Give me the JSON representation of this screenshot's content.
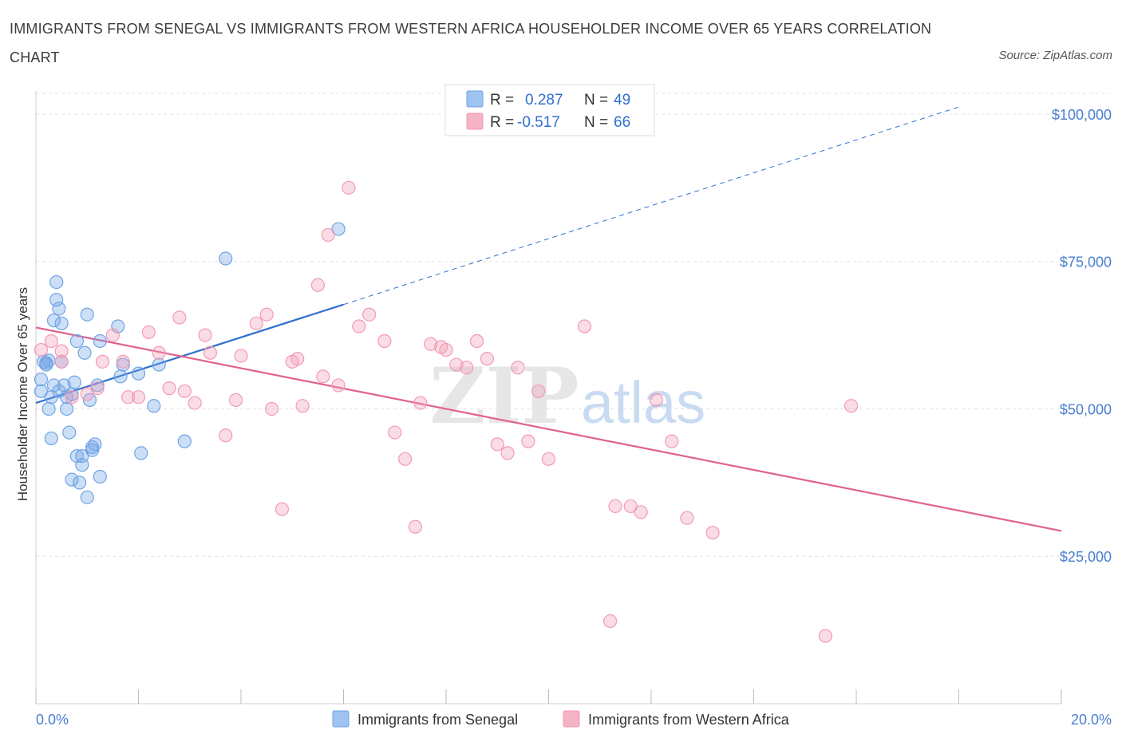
{
  "title": "IMMIGRANTS FROM SENEGAL VS IMMIGRANTS FROM WESTERN AFRICA HOUSEHOLDER INCOME OVER 65 YEARS CORRELATION CHART",
  "source": "Source: ZipAtlas.com",
  "watermark": {
    "zip": "ZIP",
    "atlas": "atlas"
  },
  "legend_top": [
    {
      "r_label": "R =",
      "r_value": "0.287",
      "n_label": "N =",
      "n_value": "49",
      "color": "#9ec3f0"
    },
    {
      "r_label": "R =",
      "r_value": "-0.517",
      "n_label": "N =",
      "n_value": "66",
      "color": "#f5b3c6"
    }
  ],
  "chart_data": {
    "type": "scatter",
    "title": "IMMIGRANTS FROM SENEGAL VS IMMIGRANTS FROM WESTERN AFRICA HOUSEHOLDER INCOME OVER 65 YEARS CORRELATION CHART",
    "xlabel": "",
    "ylabel": "Householder Income Over 65 years",
    "xlim": [
      0,
      20
    ],
    "ylim": [
      0,
      105000
    ],
    "x_tick_labels": [
      "0.0%",
      "20.0%"
    ],
    "y_ticks": [
      25000,
      50000,
      75000,
      100000
    ],
    "y_tick_labels": [
      "$25,000",
      "$50,000",
      "$75,000",
      "$100,000"
    ],
    "grid": true,
    "legend_position": "bottom",
    "series": [
      {
        "name": "Immigrants from Senegal",
        "color": "#6fa3e6",
        "line_color": "#2f6fd0",
        "trend": {
          "x": [
            0,
            6
          ],
          "y": [
            51000,
            67700
          ],
          "dashed_to": [
            18,
            101200
          ]
        },
        "points": [
          [
            0.1,
            53000
          ],
          [
            0.1,
            55000
          ],
          [
            0.15,
            58000
          ],
          [
            0.2,
            57500
          ],
          [
            0.25,
            50000
          ],
          [
            0.3,
            52000
          ],
          [
            0.3,
            45000
          ],
          [
            0.35,
            54000
          ],
          [
            0.35,
            65000
          ],
          [
            0.4,
            68500
          ],
          [
            0.4,
            71500
          ],
          [
            0.45,
            67000
          ],
          [
            0.5,
            64500
          ],
          [
            0.5,
            58000
          ],
          [
            0.55,
            54000
          ],
          [
            0.6,
            52000
          ],
          [
            0.6,
            50000
          ],
          [
            0.65,
            46000
          ],
          [
            0.7,
            38000
          ],
          [
            0.75,
            54500
          ],
          [
            0.8,
            42000
          ],
          [
            0.85,
            37500
          ],
          [
            0.8,
            61500
          ],
          [
            0.9,
            42000
          ],
          [
            0.9,
            40500
          ],
          [
            0.95,
            59500
          ],
          [
            1.0,
            35000
          ],
          [
            1.0,
            66000
          ],
          [
            1.05,
            51500
          ],
          [
            1.1,
            43000
          ],
          [
            1.1,
            43500
          ],
          [
            1.15,
            44000
          ],
          [
            1.2,
            54000
          ],
          [
            1.25,
            38500
          ],
          [
            1.25,
            61500
          ],
          [
            1.6,
            64000
          ],
          [
            1.7,
            57500
          ],
          [
            2.0,
            56000
          ],
          [
            2.05,
            42500
          ],
          [
            2.3,
            50500
          ],
          [
            2.4,
            57500
          ],
          [
            2.9,
            44500
          ],
          [
            3.7,
            75500
          ],
          [
            5.9,
            80500
          ],
          [
            0.2,
            57800
          ],
          [
            0.45,
            53000
          ],
          [
            0.7,
            52500
          ],
          [
            1.65,
            55500
          ],
          [
            0.25,
            58200
          ]
        ]
      },
      {
        "name": "Immigrants from Western Africa",
        "color": "#f29ab4",
        "line_color": "#e0628e",
        "trend": {
          "x": [
            0,
            20
          ],
          "y": [
            63800,
            29300
          ]
        },
        "points": [
          [
            0.1,
            60000
          ],
          [
            0.3,
            61500
          ],
          [
            0.5,
            58000
          ],
          [
            0.7,
            52000
          ],
          [
            1.0,
            52500
          ],
          [
            1.2,
            53500
          ],
          [
            1.3,
            58000
          ],
          [
            1.5,
            62500
          ],
          [
            1.7,
            58000
          ],
          [
            1.8,
            52000
          ],
          [
            2.0,
            52000
          ],
          [
            2.2,
            63000
          ],
          [
            2.4,
            59500
          ],
          [
            2.6,
            53500
          ],
          [
            2.8,
            65500
          ],
          [
            2.9,
            53000
          ],
          [
            3.1,
            51000
          ],
          [
            3.3,
            62500
          ],
          [
            3.4,
            59500
          ],
          [
            3.7,
            45500
          ],
          [
            3.9,
            51500
          ],
          [
            4.0,
            59000
          ],
          [
            4.3,
            64500
          ],
          [
            4.5,
            66000
          ],
          [
            4.6,
            50000
          ],
          [
            4.8,
            33000
          ],
          [
            5.0,
            58000
          ],
          [
            5.1,
            58500
          ],
          [
            5.2,
            50500
          ],
          [
            5.5,
            71000
          ],
          [
            5.6,
            55500
          ],
          [
            5.7,
            79500
          ],
          [
            5.9,
            54000
          ],
          [
            6.1,
            87500
          ],
          [
            6.3,
            64000
          ],
          [
            6.5,
            66000
          ],
          [
            6.8,
            61500
          ],
          [
            7.0,
            46000
          ],
          [
            7.2,
            41500
          ],
          [
            7.4,
            30000
          ],
          [
            7.5,
            51000
          ],
          [
            7.7,
            61000
          ],
          [
            7.9,
            60500
          ],
          [
            8.0,
            60000
          ],
          [
            8.2,
            57500
          ],
          [
            8.4,
            57000
          ],
          [
            8.6,
            61500
          ],
          [
            8.8,
            58500
          ],
          [
            9.0,
            44000
          ],
          [
            9.2,
            42500
          ],
          [
            9.4,
            57000
          ],
          [
            9.6,
            44500
          ],
          [
            9.8,
            53000
          ],
          [
            10.0,
            41500
          ],
          [
            10.7,
            64000
          ],
          [
            11.2,
            14000
          ],
          [
            11.3,
            33500
          ],
          [
            11.6,
            33500
          ],
          [
            11.8,
            32500
          ],
          [
            12.1,
            51500
          ],
          [
            12.4,
            44500
          ],
          [
            12.7,
            31500
          ],
          [
            13.2,
            29000
          ],
          [
            15.4,
            11500
          ],
          [
            15.9,
            50500
          ],
          [
            0.5,
            59800
          ]
        ]
      }
    ]
  },
  "axes": {
    "x_left_label": "0.0%",
    "x_right_label": "20.0%",
    "y_label": "Householder Income Over 65 years"
  },
  "legend_bottom": [
    {
      "label": "Immigrants from Senegal",
      "color": "#9ec3f0"
    },
    {
      "label": "Immigrants from Western Africa",
      "color": "#f5b3c6"
    }
  ]
}
